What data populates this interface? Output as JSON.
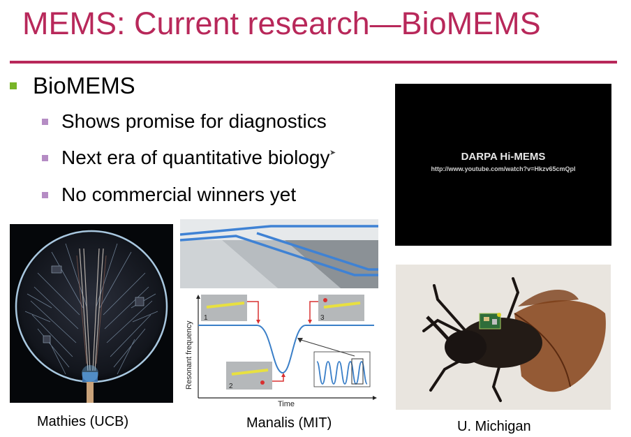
{
  "slide": {
    "title": "MEMS: Current research—BioMEMS",
    "bullet_main": "BioMEMS",
    "bullets_sub": [
      "Shows promise for diagnostics",
      "Next era of quantitative biology",
      "No commercial winners yet"
    ]
  },
  "video": {
    "title": "DARPA Hi-MEMS",
    "url": "http://www.youtube.com/watch?v=Hkzv65cmQpl"
  },
  "figures": {
    "plot_ylabel": "Resonant frequency",
    "plot_xlabel": "Time",
    "plot_steps": [
      "1",
      "2",
      "3"
    ]
  },
  "captions": {
    "left": "Mathies (UCB)",
    "middle": "Manalis (MIT)",
    "right": "U. Michigan"
  },
  "colors": {
    "accent": "#b8285a",
    "bullet_level1": "#78b428",
    "bullet_level2": "#b58cc4"
  }
}
